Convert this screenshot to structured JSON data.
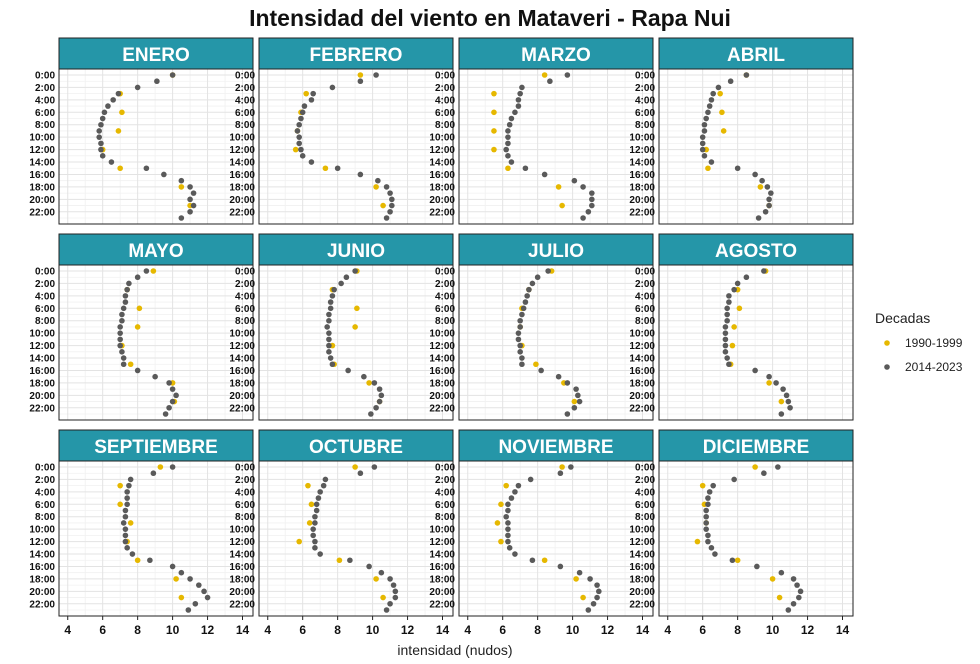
{
  "chart_data": {
    "type": "scatter",
    "title": "Intensidad del viento en Mataveri - Rapa Nui",
    "xlabel": "intensidad (nudos)",
    "xlim": [
      3.5,
      14.6
    ],
    "x_ticks": [
      4,
      6,
      8,
      10,
      12,
      14
    ],
    "y_ticks": [
      "0:00",
      "2:00",
      "4:00",
      "6:00",
      "8:00",
      "10:00",
      "12:00",
      "14:00",
      "16:00",
      "18:00",
      "20:00",
      "22:00"
    ],
    "hours": [
      0,
      1,
      2,
      3,
      4,
      5,
      6,
      7,
      8,
      9,
      10,
      11,
      12,
      13,
      14,
      15,
      16,
      17,
      18,
      19,
      20,
      21,
      22,
      23
    ],
    "legend": {
      "title": "Decadas",
      "position": "right",
      "entries": [
        {
          "label": "1990-1999",
          "color": "#e6b800"
        },
        {
          "label": "2014-2023",
          "color": "#5a5a5a"
        }
      ]
    },
    "grid": true,
    "panels": [
      {
        "month": "ENERO",
        "series": [
          {
            "name": "1990-1999",
            "hours": [
              0,
              3,
              6,
              9,
              12,
              15,
              18,
              21
            ],
            "values": [
              10.0,
              7.0,
              7.1,
              6.9,
              6.0,
              7.0,
              10.5,
              11.0
            ]
          },
          {
            "name": "2014-2023",
            "values": [
              10.0,
              9.1,
              8.0,
              6.9,
              6.6,
              6.3,
              6.1,
              6.0,
              5.9,
              5.8,
              5.8,
              5.9,
              5.9,
              6.0,
              6.5,
              8.5,
              9.5,
              10.5,
              11.0,
              11.2,
              11.0,
              11.2,
              11.0,
              10.5
            ]
          }
        ]
      },
      {
        "month": "FEBRERO",
        "series": [
          {
            "name": "1990-1999",
            "hours": [
              0,
              3,
              6,
              9,
              12,
              15,
              18,
              21
            ],
            "values": [
              9.3,
              6.2,
              5.9,
              5.7,
              5.6,
              7.3,
              10.2,
              10.6
            ]
          },
          {
            "name": "2014-2023",
            "values": [
              10.2,
              9.3,
              7.7,
              6.6,
              6.5,
              6.1,
              6.0,
              5.9,
              5.8,
              5.7,
              5.8,
              5.8,
              5.9,
              6.0,
              6.5,
              8.0,
              9.3,
              10.3,
              10.8,
              11.0,
              11.1,
              11.1,
              11.0,
              10.8
            ]
          }
        ]
      },
      {
        "month": "MARZO",
        "series": [
          {
            "name": "1990-1999",
            "hours": [
              0,
              3,
              6,
              9,
              12,
              15,
              18,
              21
            ],
            "values": [
              8.4,
              5.5,
              5.5,
              5.5,
              5.5,
              6.3,
              9.2,
              9.4
            ]
          },
          {
            "name": "2014-2023",
            "values": [
              9.7,
              8.7,
              7.1,
              7.0,
              6.9,
              6.9,
              6.7,
              6.5,
              6.4,
              6.3,
              6.3,
              6.3,
              6.2,
              6.3,
              6.5,
              7.3,
              8.4,
              10.1,
              10.6,
              11.1,
              11.1,
              11.1,
              10.9,
              10.6
            ]
          }
        ]
      },
      {
        "month": "ABRIL",
        "series": [
          {
            "name": "1990-1999",
            "hours": [
              0,
              3,
              6,
              9,
              12,
              15,
              18,
              21
            ],
            "values": [
              8.5,
              7.0,
              7.1,
              7.2,
              6.2,
              6.3,
              9.3,
              9.8
            ]
          },
          {
            "name": "2014-2023",
            "values": [
              8.5,
              7.6,
              6.9,
              6.6,
              6.5,
              6.4,
              6.3,
              6.2,
              6.1,
              6.1,
              6.0,
              6.0,
              6.0,
              6.1,
              6.5,
              8.0,
              9.0,
              9.4,
              9.7,
              9.9,
              9.8,
              9.8,
              9.6,
              9.2
            ]
          }
        ]
      },
      {
        "month": "MAYO",
        "series": [
          {
            "name": "1990-1999",
            "hours": [
              0,
              3,
              6,
              9,
              12,
              15,
              18,
              21
            ],
            "values": [
              8.9,
              7.4,
              8.1,
              8.0,
              7.1,
              7.6,
              10.0,
              10.1
            ]
          },
          {
            "name": "2014-2023",
            "values": [
              8.5,
              8.0,
              7.5,
              7.4,
              7.3,
              7.3,
              7.2,
              7.1,
              7.1,
              7.0,
              7.0,
              7.0,
              7.0,
              7.1,
              7.2,
              7.2,
              8.0,
              9.0,
              9.8,
              10.0,
              10.2,
              10.0,
              9.8,
              9.6
            ]
          }
        ]
      },
      {
        "month": "JUNIO",
        "series": [
          {
            "name": "1990-1999",
            "hours": [
              0,
              3,
              6,
              9,
              12,
              15,
              18,
              21
            ],
            "values": [
              9.1,
              7.7,
              9.1,
              9.0,
              7.7,
              7.8,
              9.8,
              10.4
            ]
          },
          {
            "name": "2014-2023",
            "values": [
              9.0,
              8.5,
              8.2,
              7.8,
              7.7,
              7.6,
              7.6,
              7.5,
              7.5,
              7.4,
              7.5,
              7.5,
              7.5,
              7.5,
              7.6,
              7.7,
              8.6,
              9.5,
              10.1,
              10.4,
              10.5,
              10.4,
              10.2,
              9.9
            ]
          }
        ]
      },
      {
        "month": "JULIO",
        "series": [
          {
            "name": "1990-1999",
            "hours": [
              0,
              3,
              6,
              9,
              12,
              15,
              18,
              21
            ],
            "values": [
              8.8,
              7.5,
              7.1,
              7.0,
              7.1,
              7.9,
              9.5,
              10.1
            ]
          },
          {
            "name": "2014-2023",
            "values": [
              8.6,
              8.0,
              7.7,
              7.5,
              7.4,
              7.3,
              7.2,
              7.1,
              7.0,
              7.0,
              6.9,
              6.9,
              7.0,
              7.0,
              7.1,
              7.1,
              8.2,
              9.2,
              9.7,
              10.2,
              10.3,
              10.4,
              10.1,
              9.7
            ]
          }
        ]
      },
      {
        "month": "AGOSTO",
        "series": [
          {
            "name": "1990-1999",
            "hours": [
              0,
              3,
              6,
              9,
              12,
              15,
              18,
              21
            ],
            "values": [
              9.6,
              8.0,
              8.1,
              7.8,
              7.7,
              7.6,
              9.8,
              10.5
            ]
          },
          {
            "name": "2014-2023",
            "values": [
              9.5,
              8.5,
              8.0,
              7.8,
              7.5,
              7.5,
              7.4,
              7.4,
              7.4,
              7.3,
              7.3,
              7.3,
              7.3,
              7.3,
              7.4,
              7.5,
              9.0,
              9.8,
              10.2,
              10.6,
              10.8,
              10.9,
              11.0,
              10.5
            ]
          }
        ]
      },
      {
        "month": "SEPTIEMBRE",
        "series": [
          {
            "name": "1990-1999",
            "hours": [
              0,
              3,
              6,
              9,
              12,
              15,
              18,
              21
            ],
            "values": [
              9.3,
              7.0,
              7.0,
              7.6,
              7.4,
              8.0,
              10.2,
              10.5
            ]
          },
          {
            "name": "2014-2023",
            "values": [
              10.0,
              8.9,
              7.6,
              7.5,
              7.4,
              7.4,
              7.4,
              7.3,
              7.3,
              7.2,
              7.3,
              7.3,
              7.3,
              7.4,
              7.7,
              8.7,
              10.0,
              10.5,
              11.0,
              11.5,
              11.8,
              12.0,
              11.3,
              10.9
            ]
          }
        ]
      },
      {
        "month": "OCTUBRE",
        "series": [
          {
            "name": "1990-1999",
            "hours": [
              0,
              3,
              6,
              9,
              12,
              15,
              18,
              21
            ],
            "values": [
              9.0,
              6.3,
              6.5,
              6.4,
              5.8,
              8.1,
              10.2,
              10.6
            ]
          },
          {
            "name": "2014-2023",
            "values": [
              10.1,
              9.3,
              7.3,
              7.2,
              7.0,
              6.9,
              6.8,
              6.8,
              6.7,
              6.7,
              6.6,
              6.6,
              6.7,
              6.7,
              7.0,
              8.7,
              9.8,
              10.5,
              11.0,
              11.2,
              11.3,
              11.3,
              11.0,
              10.8
            ]
          }
        ]
      },
      {
        "month": "NOVIEMBRE",
        "series": [
          {
            "name": "1990-1999",
            "hours": [
              0,
              3,
              6,
              9,
              12,
              15,
              18,
              21
            ],
            "values": [
              9.4,
              6.2,
              5.9,
              5.7,
              5.9,
              8.4,
              10.2,
              10.6
            ]
          },
          {
            "name": "2014-2023",
            "values": [
              9.9,
              9.3,
              7.6,
              6.9,
              6.7,
              6.5,
              6.3,
              6.3,
              6.2,
              6.3,
              6.3,
              6.3,
              6.3,
              6.4,
              6.7,
              7.7,
              9.3,
              10.4,
              11.0,
              11.4,
              11.5,
              11.4,
              11.2,
              10.9
            ]
          }
        ]
      },
      {
        "month": "DICIEMBRE",
        "series": [
          {
            "name": "1990-1999",
            "hours": [
              0,
              3,
              6,
              9,
              12,
              15,
              18,
              21
            ],
            "values": [
              9.0,
              6.0,
              6.1,
              6.2,
              5.7,
              8.0,
              10.0,
              10.4
            ]
          },
          {
            "name": "2014-2023",
            "values": [
              10.3,
              9.5,
              7.8,
              6.6,
              6.4,
              6.3,
              6.3,
              6.2,
              6.2,
              6.2,
              6.2,
              6.3,
              6.3,
              6.5,
              6.7,
              7.7,
              9.1,
              10.5,
              11.2,
              11.4,
              11.6,
              11.5,
              11.2,
              10.9
            ]
          }
        ]
      }
    ]
  }
}
